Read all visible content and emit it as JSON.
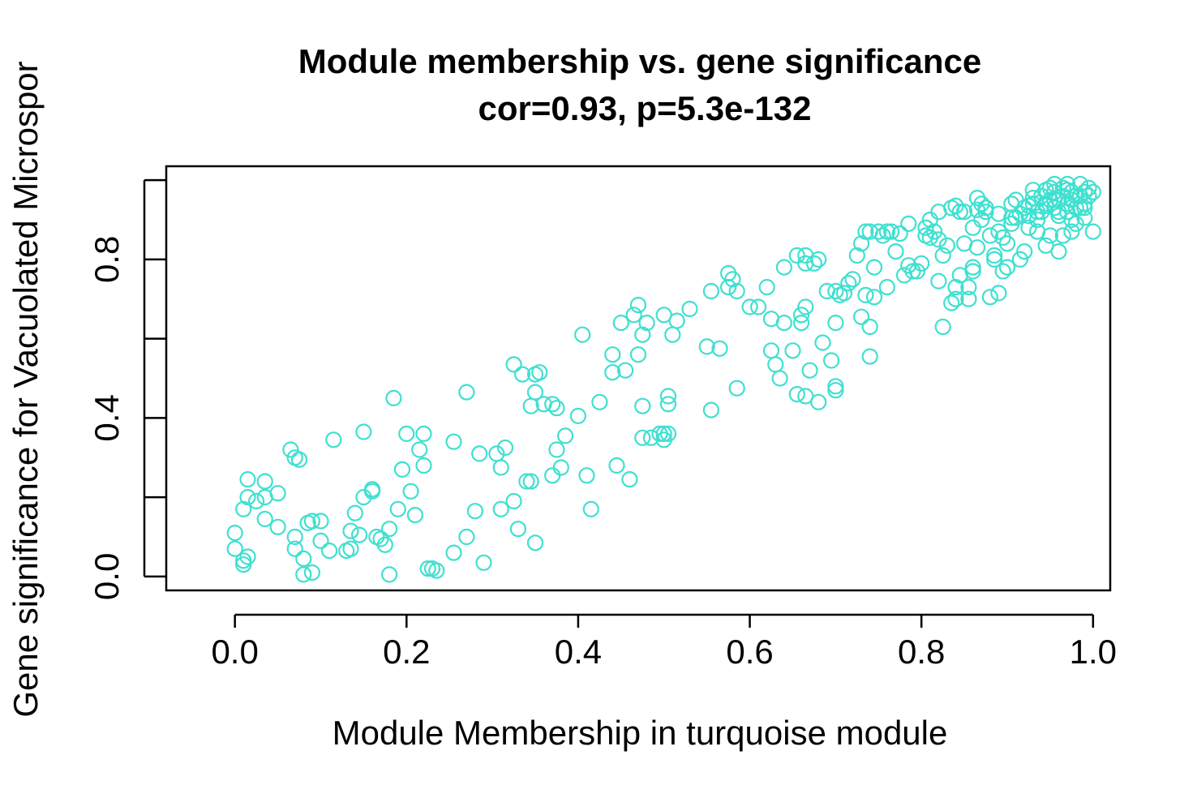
{
  "chart_data": {
    "type": "scatter",
    "title": "Module membership vs. gene significance",
    "subtitle": "cor=0.93, p=5.3e-132",
    "xlabel": "Module Membership in turquoise module",
    "ylabel": "Gene significance for Vacuolated Microspor",
    "xlim": [
      -0.08,
      1.02
    ],
    "ylim": [
      -0.035,
      1.035
    ],
    "xticks": [
      0.0,
      0.2,
      0.4,
      0.6,
      0.8,
      1.0
    ],
    "xtick_labels": [
      "0.0",
      "0.2",
      "0.4",
      "0.6",
      "0.8",
      "1.0"
    ],
    "yticks": [
      0.0,
      0.4,
      0.8
    ],
    "ytick_labels": [
      "0.0",
      "0.4",
      "0.8"
    ],
    "yticks_minor": [
      0.2,
      0.6,
      1.0
    ],
    "grid": false,
    "marker": "open-circle",
    "color": "#40E0D0",
    "points": [
      [
        0.0,
        0.11
      ],
      [
        0.0,
        0.07
      ],
      [
        0.01,
        0.17
      ],
      [
        0.01,
        0.04
      ],
      [
        0.01,
        0.03
      ],
      [
        0.015,
        0.05
      ],
      [
        0.015,
        0.2
      ],
      [
        0.015,
        0.245
      ],
      [
        0.025,
        0.19
      ],
      [
        0.035,
        0.2
      ],
      [
        0.035,
        0.24
      ],
      [
        0.035,
        0.145
      ],
      [
        0.05,
        0.21
      ],
      [
        0.05,
        0.125
      ],
      [
        0.065,
        0.32
      ],
      [
        0.07,
        0.3
      ],
      [
        0.075,
        0.295
      ],
      [
        0.07,
        0.1
      ],
      [
        0.07,
        0.07
      ],
      [
        0.08,
        0.045
      ],
      [
        0.08,
        0.005
      ],
      [
        0.085,
        0.135
      ],
      [
        0.09,
        0.14
      ],
      [
        0.09,
        0.01
      ],
      [
        0.1,
        0.14
      ],
      [
        0.1,
        0.09
      ],
      [
        0.11,
        0.065
      ],
      [
        0.115,
        0.345
      ],
      [
        0.13,
        0.065
      ],
      [
        0.135,
        0.07
      ],
      [
        0.135,
        0.115
      ],
      [
        0.14,
        0.16
      ],
      [
        0.145,
        0.105
      ],
      [
        0.15,
        0.2
      ],
      [
        0.15,
        0.365
      ],
      [
        0.16,
        0.215
      ],
      [
        0.16,
        0.22
      ],
      [
        0.165,
        0.1
      ],
      [
        0.17,
        0.095
      ],
      [
        0.175,
        0.08
      ],
      [
        0.18,
        0.12
      ],
      [
        0.18,
        0.005
      ],
      [
        0.185,
        0.45
      ],
      [
        0.19,
        0.17
      ],
      [
        0.195,
        0.27
      ],
      [
        0.2,
        0.36
      ],
      [
        0.205,
        0.215
      ],
      [
        0.21,
        0.155
      ],
      [
        0.215,
        0.32
      ],
      [
        0.22,
        0.36
      ],
      [
        0.22,
        0.28
      ],
      [
        0.225,
        0.02
      ],
      [
        0.23,
        0.02
      ],
      [
        0.235,
        0.015
      ],
      [
        0.255,
        0.34
      ],
      [
        0.255,
        0.06
      ],
      [
        0.27,
        0.465
      ],
      [
        0.27,
        0.1
      ],
      [
        0.28,
        0.165
      ],
      [
        0.285,
        0.31
      ],
      [
        0.29,
        0.035
      ],
      [
        0.305,
        0.31
      ],
      [
        0.31,
        0.17
      ],
      [
        0.31,
        0.275
      ],
      [
        0.315,
        0.325
      ],
      [
        0.325,
        0.535
      ],
      [
        0.325,
        0.19
      ],
      [
        0.33,
        0.12
      ],
      [
        0.335,
        0.51
      ],
      [
        0.34,
        0.24
      ],
      [
        0.345,
        0.24
      ],
      [
        0.345,
        0.43
      ],
      [
        0.35,
        0.465
      ],
      [
        0.35,
        0.51
      ],
      [
        0.35,
        0.085
      ],
      [
        0.355,
        0.515
      ],
      [
        0.36,
        0.435
      ],
      [
        0.37,
        0.255
      ],
      [
        0.37,
        0.435
      ],
      [
        0.375,
        0.32
      ],
      [
        0.375,
        0.425
      ],
      [
        0.38,
        0.275
      ],
      [
        0.385,
        0.355
      ],
      [
        0.4,
        0.405
      ],
      [
        0.405,
        0.61
      ],
      [
        0.41,
        0.255
      ],
      [
        0.415,
        0.17
      ],
      [
        0.425,
        0.44
      ],
      [
        0.44,
        0.56
      ],
      [
        0.44,
        0.515
      ],
      [
        0.445,
        0.28
      ],
      [
        0.45,
        0.64
      ],
      [
        0.455,
        0.52
      ],
      [
        0.46,
        0.245
      ],
      [
        0.465,
        0.66
      ],
      [
        0.47,
        0.56
      ],
      [
        0.47,
        0.685
      ],
      [
        0.475,
        0.61
      ],
      [
        0.475,
        0.43
      ],
      [
        0.475,
        0.35
      ],
      [
        0.48,
        0.64
      ],
      [
        0.485,
        0.35
      ],
      [
        0.495,
        0.36
      ],
      [
        0.5,
        0.345
      ],
      [
        0.5,
        0.36
      ],
      [
        0.5,
        0.66
      ],
      [
        0.505,
        0.455
      ],
      [
        0.505,
        0.435
      ],
      [
        0.505,
        0.36
      ],
      [
        0.51,
        0.61
      ],
      [
        0.515,
        0.645
      ],
      [
        0.53,
        0.675
      ],
      [
        0.55,
        0.58
      ],
      [
        0.555,
        0.72
      ],
      [
        0.555,
        0.42
      ],
      [
        0.565,
        0.575
      ],
      [
        0.575,
        0.73
      ],
      [
        0.575,
        0.765
      ],
      [
        0.58,
        0.75
      ],
      [
        0.585,
        0.72
      ],
      [
        0.585,
        0.475
      ],
      [
        0.6,
        0.68
      ],
      [
        0.61,
        0.68
      ],
      [
        0.62,
        0.73
      ],
      [
        0.625,
        0.57
      ],
      [
        0.625,
        0.65
      ],
      [
        0.63,
        0.535
      ],
      [
        0.635,
        0.5
      ],
      [
        0.64,
        0.78
      ],
      [
        0.64,
        0.64
      ],
      [
        0.65,
        0.57
      ],
      [
        0.655,
        0.81
      ],
      [
        0.655,
        0.46
      ],
      [
        0.66,
        0.66
      ],
      [
        0.66,
        0.64
      ],
      [
        0.665,
        0.79
      ],
      [
        0.665,
        0.81
      ],
      [
        0.665,
        0.68
      ],
      [
        0.665,
        0.455
      ],
      [
        0.67,
        0.52
      ],
      [
        0.675,
        0.79
      ],
      [
        0.68,
        0.8
      ],
      [
        0.68,
        0.44
      ],
      [
        0.685,
        0.59
      ],
      [
        0.69,
        0.72
      ],
      [
        0.695,
        0.545
      ],
      [
        0.7,
        0.72
      ],
      [
        0.7,
        0.64
      ],
      [
        0.7,
        0.48
      ],
      [
        0.7,
        0.47
      ],
      [
        0.705,
        0.71
      ],
      [
        0.71,
        0.715
      ],
      [
        0.715,
        0.74
      ],
      [
        0.72,
        0.75
      ],
      [
        0.725,
        0.81
      ],
      [
        0.73,
        0.655
      ],
      [
        0.73,
        0.84
      ],
      [
        0.735,
        0.87
      ],
      [
        0.735,
        0.71
      ],
      [
        0.74,
        0.87
      ],
      [
        0.74,
        0.555
      ],
      [
        0.74,
        0.63
      ],
      [
        0.745,
        0.78
      ],
      [
        0.745,
        0.705
      ],
      [
        0.75,
        0.87
      ],
      [
        0.755,
        0.86
      ],
      [
        0.76,
        0.87
      ],
      [
        0.76,
        0.73
      ],
      [
        0.765,
        0.87
      ],
      [
        0.77,
        0.82
      ],
      [
        0.775,
        0.865
      ],
      [
        0.78,
        0.76
      ],
      [
        0.785,
        0.89
      ],
      [
        0.785,
        0.785
      ],
      [
        0.79,
        0.77
      ],
      [
        0.795,
        0.77
      ],
      [
        0.8,
        0.79
      ],
      [
        0.805,
        0.88
      ],
      [
        0.805,
        0.86
      ],
      [
        0.81,
        0.9
      ],
      [
        0.81,
        0.855
      ],
      [
        0.815,
        0.87
      ],
      [
        0.82,
        0.85
      ],
      [
        0.82,
        0.92
      ],
      [
        0.82,
        0.745
      ],
      [
        0.825,
        0.63
      ],
      [
        0.825,
        0.81
      ],
      [
        0.83,
        0.835
      ],
      [
        0.835,
        0.93
      ],
      [
        0.835,
        0.69
      ],
      [
        0.84,
        0.935
      ],
      [
        0.84,
        0.73
      ],
      [
        0.84,
        0.7
      ],
      [
        0.845,
        0.76
      ],
      [
        0.845,
        0.92
      ],
      [
        0.85,
        0.84
      ],
      [
        0.85,
        0.92
      ],
      [
        0.855,
        0.7
      ],
      [
        0.855,
        0.73
      ],
      [
        0.86,
        0.77
      ],
      [
        0.86,
        0.88
      ],
      [
        0.86,
        0.78
      ],
      [
        0.865,
        0.955
      ],
      [
        0.865,
        0.925
      ],
      [
        0.865,
        0.83
      ],
      [
        0.87,
        0.9
      ],
      [
        0.87,
        0.94
      ],
      [
        0.875,
        0.93
      ],
      [
        0.875,
        0.92
      ],
      [
        0.88,
        0.705
      ],
      [
        0.88,
        0.86
      ],
      [
        0.885,
        0.81
      ],
      [
        0.885,
        0.8
      ],
      [
        0.89,
        0.715
      ],
      [
        0.89,
        0.915
      ],
      [
        0.89,
        0.87
      ],
      [
        0.895,
        0.77
      ],
      [
        0.895,
        0.855
      ],
      [
        0.9,
        0.84
      ],
      [
        0.9,
        0.78
      ],
      [
        0.905,
        0.94
      ],
      [
        0.905,
        0.89
      ],
      [
        0.91,
        0.95
      ],
      [
        0.91,
        0.905
      ],
      [
        0.915,
        0.8
      ],
      [
        0.92,
        0.82
      ],
      [
        0.92,
        0.93
      ],
      [
        0.925,
        0.91
      ],
      [
        0.93,
        0.955
      ],
      [
        0.93,
        0.94
      ],
      [
        0.935,
        0.87
      ],
      [
        0.935,
        0.9
      ],
      [
        0.94,
        0.92
      ],
      [
        0.94,
        0.96
      ],
      [
        0.945,
        0.935
      ],
      [
        0.945,
        0.835
      ],
      [
        0.95,
        0.95
      ],
      [
        0.95,
        0.98
      ],
      [
        0.955,
        0.99
      ],
      [
        0.955,
        0.97
      ],
      [
        0.955,
        0.95
      ],
      [
        0.96,
        0.92
      ],
      [
        0.96,
        0.82
      ],
      [
        0.96,
        0.91
      ],
      [
        0.965,
        0.96
      ],
      [
        0.965,
        0.98
      ],
      [
        0.97,
        0.94
      ],
      [
        0.97,
        0.99
      ],
      [
        0.975,
        0.95
      ],
      [
        0.975,
        0.97
      ],
      [
        0.98,
        0.93
      ],
      [
        0.98,
        0.89
      ],
      [
        0.985,
        0.99
      ],
      [
        0.985,
        0.96
      ],
      [
        0.99,
        0.93
      ],
      [
        0.99,
        0.905
      ],
      [
        0.995,
        0.96
      ],
      [
        0.995,
        0.98
      ],
      [
        1.0,
        0.97
      ],
      [
        1.0,
        0.87
      ],
      [
        0.97,
        0.92
      ],
      [
        0.975,
        0.9
      ],
      [
        0.925,
        0.88
      ],
      [
        0.915,
        0.915
      ],
      [
        0.935,
        0.92
      ],
      [
        0.945,
        0.94
      ],
      [
        0.96,
        0.95
      ],
      [
        0.97,
        0.975
      ],
      [
        0.98,
        0.96
      ],
      [
        0.99,
        0.94
      ],
      [
        0.95,
        0.86
      ],
      [
        0.965,
        0.86
      ],
      [
        0.975,
        0.87
      ],
      [
        0.985,
        0.93
      ],
      [
        0.99,
        0.97
      ],
      [
        0.93,
        0.975
      ],
      [
        0.945,
        0.975
      ],
      [
        0.955,
        0.93
      ],
      [
        0.925,
        0.935
      ],
      [
        0.905,
        0.905
      ]
    ]
  }
}
